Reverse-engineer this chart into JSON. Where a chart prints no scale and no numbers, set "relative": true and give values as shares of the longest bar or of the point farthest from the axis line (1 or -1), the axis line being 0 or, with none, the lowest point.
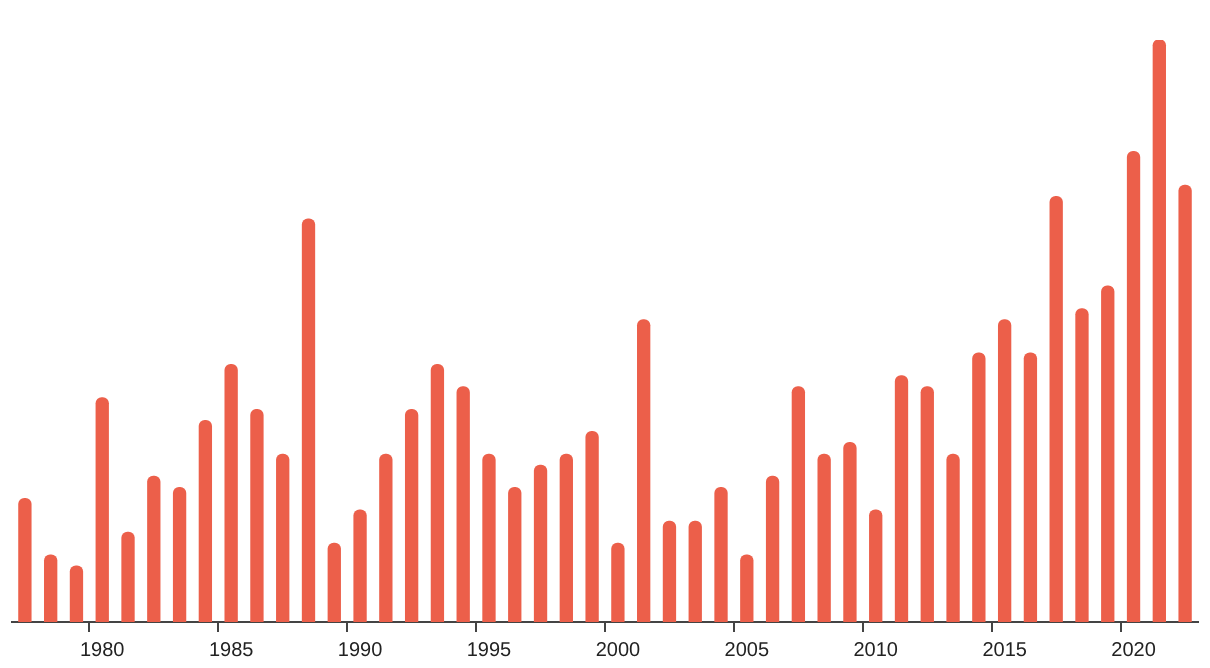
{
  "chart_data": {
    "type": "bar",
    "relative": true,
    "color": "#ec5f4a",
    "grid": false,
    "legend": false,
    "categories": [
      null,
      null,
      null,
      "1980",
      null,
      null,
      null,
      null,
      "1985",
      null,
      null,
      null,
      null,
      "1990",
      null,
      null,
      null,
      null,
      "1995",
      null,
      null,
      null,
      null,
      "2000",
      null,
      null,
      null,
      null,
      "2005",
      null,
      null,
      null,
      null,
      "2010",
      null,
      null,
      null,
      null,
      "2015",
      null,
      null,
      null,
      null,
      "2020",
      null,
      null
    ],
    "values": [
      0.212,
      0.115,
      0.096,
      0.385,
      0.154,
      0.25,
      0.231,
      0.346,
      0.442,
      0.365,
      0.288,
      0.692,
      0.135,
      0.192,
      0.288,
      0.365,
      0.442,
      0.404,
      0.288,
      0.231,
      0.269,
      0.288,
      0.327,
      0.135,
      0.519,
      0.173,
      0.173,
      0.231,
      0.115,
      0.25,
      0.404,
      0.288,
      0.308,
      0.192,
      0.423,
      0.404,
      0.288,
      0.462,
      0.519,
      0.462,
      0.731,
      0.538,
      0.577,
      0.808,
      1,
      0.75
    ]
  }
}
